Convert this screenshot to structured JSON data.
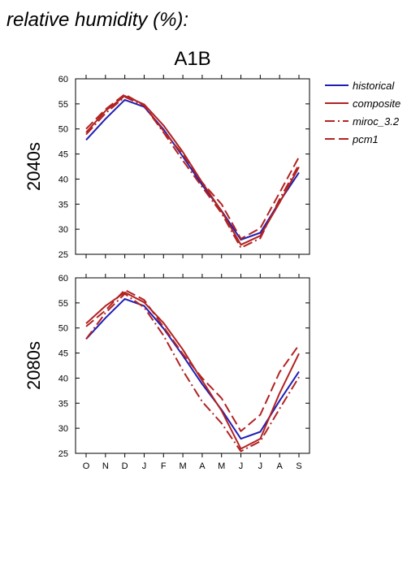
{
  "figure": {
    "title": "relative humidity (%):",
    "panel_title": "A1B",
    "row_labels": [
      "2040s",
      "2080s"
    ]
  },
  "legend": [
    {
      "name": "historical",
      "color": "#1f1fb5",
      "dash": "solid"
    },
    {
      "name": "composite",
      "color": "#b22222",
      "dash": "solid"
    },
    {
      "name": "miroc_3.2",
      "color": "#b22222",
      "dash": "dashdot"
    },
    {
      "name": "pcm1",
      "color": "#b22222",
      "dash": "dash"
    }
  ],
  "chart_data": [
    {
      "type": "line",
      "title": "2040s",
      "categories": [
        "O",
        "N",
        "D",
        "J",
        "F",
        "M",
        "A",
        "M",
        "J",
        "J",
        "A",
        "S"
      ],
      "ylim": [
        25,
        60
      ],
      "yticks": [
        25,
        30,
        35,
        40,
        45,
        50,
        55,
        60
      ],
      "series": [
        {
          "name": "historical",
          "values": [
            47.8,
            52.0,
            55.8,
            54.4,
            49.9,
            44.5,
            38.8,
            33.7,
            27.9,
            29.3,
            35.5,
            41.3
          ]
        },
        {
          "name": "composite",
          "values": [
            49.3,
            53.6,
            56.6,
            54.9,
            50.7,
            45.4,
            39.3,
            33.6,
            26.9,
            28.7,
            35.3,
            42.4
          ]
        },
        {
          "name": "miroc_3.2",
          "values": [
            48.9,
            53.1,
            56.4,
            54.6,
            49.3,
            43.7,
            38.4,
            33.2,
            26.3,
            28.2,
            36.0,
            42.9
          ]
        },
        {
          "name": "pcm1",
          "values": [
            50.0,
            53.9,
            56.9,
            54.7,
            49.6,
            44.9,
            39.3,
            35.0,
            28.1,
            30.2,
            37.3,
            44.4
          ]
        }
      ]
    },
    {
      "type": "line",
      "title": "2080s",
      "categories": [
        "O",
        "N",
        "D",
        "J",
        "F",
        "M",
        "A",
        "M",
        "J",
        "J",
        "A",
        "S"
      ],
      "ylim": [
        25,
        60
      ],
      "yticks": [
        25,
        30,
        35,
        40,
        45,
        50,
        55,
        60
      ],
      "series": [
        {
          "name": "historical",
          "values": [
            47.8,
            52.0,
            55.8,
            54.4,
            49.9,
            44.5,
            38.8,
            33.7,
            27.9,
            29.3,
            35.5,
            41.3
          ]
        },
        {
          "name": "composite",
          "values": [
            50.9,
            54.4,
            57.1,
            55.1,
            51.0,
            45.7,
            39.5,
            33.5,
            25.9,
            27.9,
            37.0,
            44.9
          ]
        },
        {
          "name": "miroc_3.2",
          "values": [
            47.8,
            53.0,
            56.8,
            54.1,
            48.5,
            41.5,
            35.3,
            31.0,
            25.4,
            27.4,
            33.9,
            40.2
          ]
        },
        {
          "name": "pcm1",
          "values": [
            50.3,
            53.5,
            57.6,
            55.6,
            50.2,
            44.8,
            40.0,
            36.0,
            29.4,
            32.7,
            41.2,
            46.6
          ]
        }
      ]
    }
  ]
}
